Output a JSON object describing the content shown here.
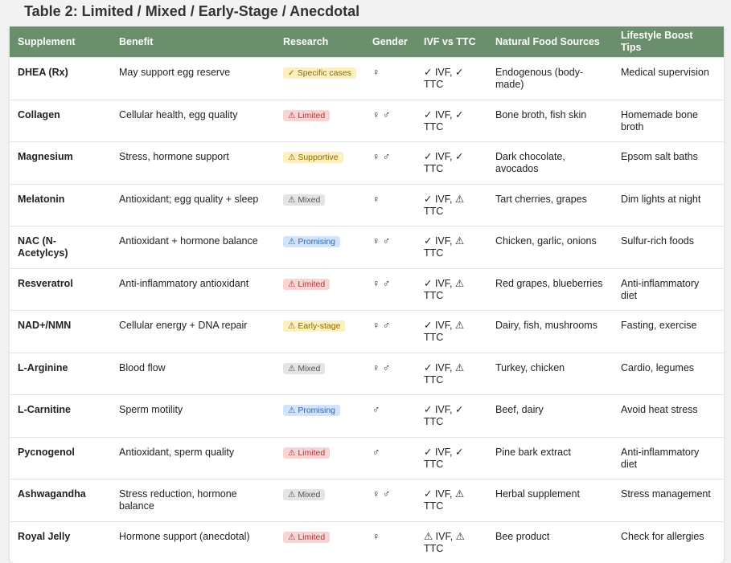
{
  "title": "Table 2: Limited / Mixed / Early-Stage / Anecdotal",
  "table": {
    "header": [
      "Supplement",
      "Benefit",
      "Research",
      "Gender",
      "IVF vs TTC",
      "Natural Food Sources",
      "Lifestyle Boost Tips"
    ],
    "rows": [
      [
        "DHEA (Rx)",
        "May support egg reserve",
        {
          "text": "✓ Specific cases",
          "tone": "yellow"
        },
        "♀",
        "✓ IVF, ✓ TTC",
        "Endogenous (body-made)",
        "Medical supervision"
      ],
      [
        "Collagen",
        "Cellular health, egg quality",
        {
          "text": "⚠ Limited",
          "tone": "red"
        },
        "♀ ♂",
        "✓ IVF, ✓ TTC",
        "Bone broth, fish skin",
        "Homemade bone broth"
      ],
      [
        "Magnesium",
        "Stress, hormone support",
        {
          "text": "⚠ Supportive",
          "tone": "yellow"
        },
        "♀ ♂",
        "✓ IVF, ✓ TTC",
        "Dark chocolate, avocados",
        "Epsom salt baths"
      ],
      [
        "Melatonin",
        "Antioxidant; egg quality + sleep",
        {
          "text": "⚠ Mixed",
          "tone": "gray"
        },
        "♀",
        "✓ IVF, ⚠ TTC",
        "Tart cherries, grapes",
        "Dim lights at night"
      ],
      [
        "NAC (N-Acetylcys)",
        "Antioxidant + hormone balance",
        {
          "text": "⚠ Promising",
          "tone": "blue"
        },
        "♀ ♂",
        "✓ IVF, ⚠ TTC",
        "Chicken, garlic, onions",
        "Sulfur-rich foods"
      ],
      [
        "Resveratrol",
        "Anti-inflammatory antioxidant",
        {
          "text": "⚠ Limited",
          "tone": "red"
        },
        "♀ ♂",
        "✓ IVF, ⚠ TTC",
        "Red grapes, blueberries",
        "Anti-inflammatory diet"
      ],
      [
        "NAD+/NMN",
        "Cellular energy + DNA repair",
        {
          "text": "⚠ Early-stage",
          "tone": "yellow"
        },
        "♀ ♂",
        "✓ IVF, ⚠ TTC",
        "Dairy, fish, mushrooms",
        "Fasting, exercise"
      ],
      [
        "L-Arginine",
        "Blood flow",
        {
          "text": "⚠ Mixed",
          "tone": "gray"
        },
        "♀ ♂",
        "✓ IVF, ⚠ TTC",
        "Turkey, chicken",
        "Cardio, legumes"
      ],
      [
        "L-Carnitine",
        "Sperm motility",
        {
          "text": "⚠ Promising",
          "tone": "blue"
        },
        "♂",
        "✓ IVF, ✓ TTC",
        "Beef, dairy",
        "Avoid heat stress"
      ],
      [
        "Pycnogenol",
        "Antioxidant, sperm quality",
        {
          "text": "⚠ Limited",
          "tone": "red"
        },
        "♂",
        "✓ IVF, ✓ TTC",
        "Pine bark extract",
        "Anti-inflammatory diet"
      ],
      [
        "Ashwagandha",
        "Stress reduction, hormone balance",
        {
          "text": "⚠ Mixed",
          "tone": "gray"
        },
        "♀ ♂",
        "✓ IVF, ⚠ TTC",
        "Herbal supplement",
        "Stress management"
      ],
      [
        "Royal Jelly",
        "Hormone support (anecdotal)",
        {
          "text": "⚠ Limited",
          "tone": "red"
        },
        "♀",
        "⚠ IVF, ⚠ TTC",
        "Bee product",
        "Check for allergies"
      ]
    ]
  }
}
